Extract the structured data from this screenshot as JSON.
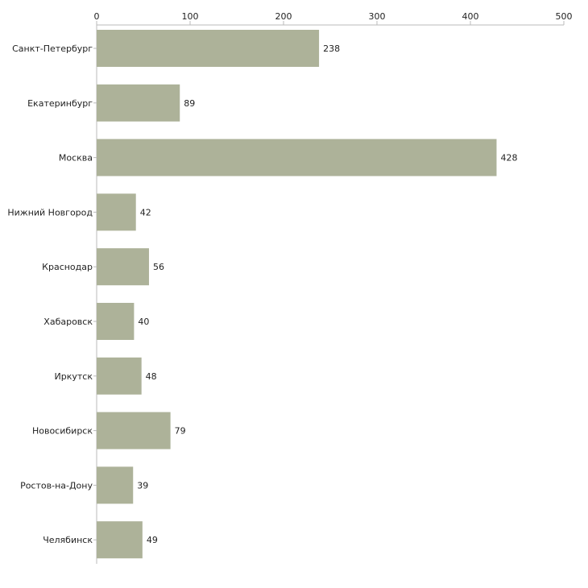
{
  "chart_data": {
    "type": "bar",
    "orientation": "horizontal",
    "title": "",
    "xlabel": "",
    "ylabel": "",
    "categories": [
      "Санкт-Петербург",
      "Екатеринбург",
      "Москва",
      "Нижний Новгород",
      "Краснодар",
      "Хабаровск",
      "Иркутск",
      "Новосибирск",
      "Ростов-на-Дону",
      "Челябинск"
    ],
    "values": [
      238,
      89,
      428,
      42,
      56,
      40,
      48,
      79,
      39,
      49
    ],
    "xlim": [
      0,
      500
    ],
    "xticks": [
      0,
      100,
      200,
      300,
      400,
      500
    ],
    "axis_position": "top",
    "grid": false,
    "bar_color": "#adb299",
    "text_color": "#222222",
    "axis_color": "#bbbbbb"
  }
}
